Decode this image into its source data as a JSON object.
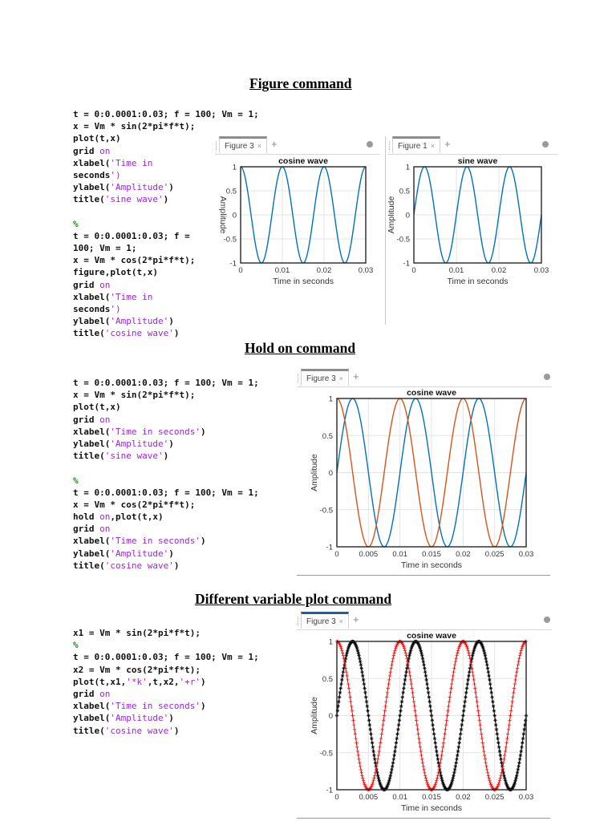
{
  "sections": [
    {
      "heading": "Figure command",
      "code_block_1": {
        "lines": [
          "t = 0:0.0001:0.03; f = 100; Vm = 1;",
          "x = Vm * sin(2*pi*f*t);",
          "plot(t,x)",
          "grid on",
          "xlabel('Time in",
          "seconds')",
          "ylabel('Amplitude')",
          "title('sine wave')",
          "",
          "%",
          "t = 0:0.0001:0.03; f =",
          "100; Vm = 1;",
          "x = Vm * cos(2*pi*f*t);",
          "figure,plot(t,x)",
          "grid on",
          "xlabel('Time in",
          "seconds')",
          "ylabel('Amplitude')",
          "title('cosine wave')"
        ]
      },
      "figures": [
        {
          "tab_label": "Figure 3",
          "close_glyph": "×",
          "add_glyph": "+"
        },
        {
          "tab_label": "Figure 1",
          "close_glyph": "×",
          "add_glyph": "+"
        }
      ]
    },
    {
      "heading": "Hold on command",
      "code_block": {
        "lines": [
          "t = 0:0.0001:0.03; f = 100; Vm = 1;",
          "x = Vm * sin(2*pi*f*t);",
          "plot(t,x)",
          "grid on",
          "xlabel('Time in seconds')",
          "ylabel('Amplitude')",
          "title('sine wave')",
          "",
          "%",
          "t = 0:0.0001:0.03; f = 100; Vm = 1;",
          "x = Vm * cos(2*pi*f*t);",
          "hold on,plot(t,x)",
          "grid on",
          "xlabel('Time in seconds')",
          "ylabel('Amplitude')",
          "title('cosine wave')"
        ]
      },
      "figures": [
        {
          "tab_label": "Figure 3",
          "close_glyph": "×",
          "add_glyph": "+"
        }
      ]
    },
    {
      "heading": "Different variable plot command",
      "code_block": {
        "lines": [
          "x1 = Vm * sin(2*pi*f*t);",
          "%",
          "t = 0:0.0001:0.03; f = 100; Vm = 1;",
          "x2 = Vm * cos(2*pi*f*t);",
          "plot(t,x1,'*k',t,x2,'+r')",
          "grid on",
          "xlabel('Time in seconds')",
          "ylabel('Amplitude')",
          "title('cosine wave')"
        ]
      },
      "figures": [
        {
          "tab_label": "Figure 3",
          "close_glyph": "×",
          "add_glyph": "+"
        }
      ]
    }
  ],
  "chart_data": [
    {
      "type": "line",
      "title": "cosine wave",
      "xlabel": "Time in seconds",
      "ylabel": "Amplitude",
      "xlim": [
        0,
        0.03
      ],
      "ylim": [
        -1,
        1
      ],
      "xticks": [
        "0",
        "0.01",
        "0.02",
        "0.03"
      ],
      "yticks": [
        "-1",
        "-0.5",
        "0",
        "0.5",
        "1"
      ],
      "grid": true,
      "series": [
        {
          "name": "cos(2*pi*100*t)",
          "function": "cos",
          "frequency_hz": 100,
          "amplitude": 1,
          "color": "#0072bd"
        }
      ]
    },
    {
      "type": "line",
      "title": "sine wave",
      "xlabel": "Time in seconds",
      "ylabel": "Amplitude",
      "xlim": [
        0,
        0.03
      ],
      "ylim": [
        -1,
        1
      ],
      "xticks": [
        "0",
        "0.01",
        "0.02",
        "0.03"
      ],
      "yticks": [
        "-1",
        "-0.5",
        "0",
        "0.5",
        "1"
      ],
      "grid": true,
      "series": [
        {
          "name": "sin(2*pi*100*t)",
          "function": "sin",
          "frequency_hz": 100,
          "amplitude": 1,
          "color": "#0072bd"
        }
      ]
    },
    {
      "type": "line",
      "title": "cosine wave",
      "xlabel": "Time in seconds",
      "ylabel": "Amplitude",
      "xlim": [
        0,
        0.03
      ],
      "ylim": [
        -1,
        1
      ],
      "xticks": [
        "0",
        "0.005",
        "0.01",
        "0.015",
        "0.02",
        "0.025",
        "0.03"
      ],
      "yticks": [
        "-1",
        "-0.5",
        "0",
        "0.5",
        "1"
      ],
      "grid": true,
      "series": [
        {
          "name": "sin(2*pi*100*t)",
          "function": "sin",
          "frequency_hz": 100,
          "amplitude": 1,
          "color": "#0072bd"
        },
        {
          "name": "cos(2*pi*100*t)",
          "function": "cos",
          "frequency_hz": 100,
          "amplitude": 1,
          "color": "#d95319"
        }
      ]
    },
    {
      "type": "line",
      "title": "cosine wave",
      "xlabel": "Time in seconds",
      "ylabel": "Amplitude",
      "xlim": [
        0,
        0.03
      ],
      "ylim": [
        -1,
        1
      ],
      "xticks": [
        "0",
        "0.005",
        "0.01",
        "0.015",
        "0.02",
        "0.025",
        "0.03"
      ],
      "yticks": [
        "-1",
        "-0.5",
        "0",
        "0.5",
        "1"
      ],
      "grid": true,
      "series": [
        {
          "name": "x1 = sin(2*pi*100*t)",
          "function": "sin",
          "frequency_hz": 100,
          "amplitude": 1,
          "marker": "*",
          "color": "#000000"
        },
        {
          "name": "x2 = cos(2*pi*100*t)",
          "function": "cos",
          "frequency_hz": 100,
          "amplitude": 1,
          "marker": "+",
          "color": "#ff0000"
        }
      ]
    }
  ]
}
